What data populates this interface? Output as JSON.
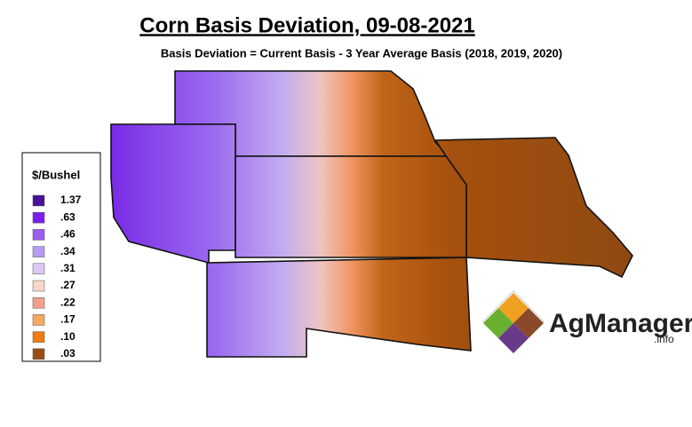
{
  "header": {
    "title": "Corn Basis Deviation, 09-08-2021",
    "subtitle": "Basis Deviation = Current Basis - 3 Year Average Basis (2018, 2019, 2020)"
  },
  "legend": {
    "title": "$/Bushel",
    "items": [
      {
        "label": "1.37",
        "color": "#4b0f9a"
      },
      {
        "label": ".63",
        "color": "#7a1ff0"
      },
      {
        "label": ".46",
        "color": "#9b5cf0"
      },
      {
        "label": ".34",
        "color": "#b99af2"
      },
      {
        "label": ".31",
        "color": "#dcc8f6"
      },
      {
        "label": ".27",
        "color": "#f7d8c8"
      },
      {
        "label": ".22",
        "color": "#f2a08c"
      },
      {
        "label": ".17",
        "color": "#f4a860"
      },
      {
        "label": ".10",
        "color": "#f07a10"
      },
      {
        "label": ".03",
        "color": "#9a4c10"
      }
    ]
  },
  "logo": {
    "name": "AgManager",
    "suffix": ".info"
  }
}
